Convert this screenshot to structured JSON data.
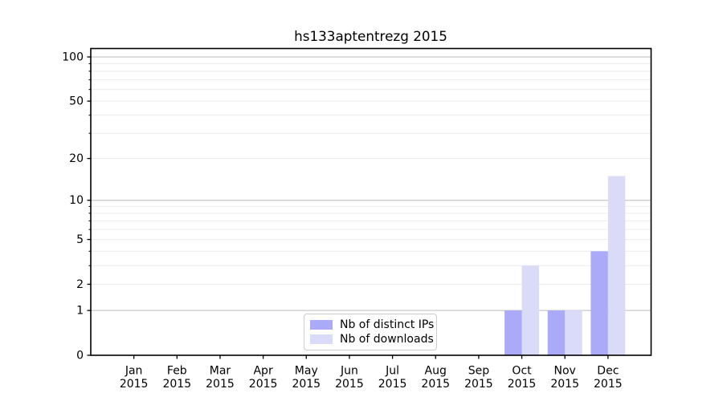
{
  "figure": {
    "background": "#ffffff"
  },
  "chart_data": {
    "type": "bar",
    "title": "hs133aptentrezg 2015",
    "categories": [
      "Jan 2015",
      "Feb 2015",
      "Mar 2015",
      "Apr 2015",
      "May 2015",
      "Jun 2015",
      "Jul 2015",
      "Aug 2015",
      "Sep 2015",
      "Oct 2015",
      "Nov 2015",
      "Dec 2015"
    ],
    "x_tick_labels": [
      [
        "Jan",
        "2015"
      ],
      [
        "Feb",
        "2015"
      ],
      [
        "Mar",
        "2015"
      ],
      [
        "Apr",
        "2015"
      ],
      [
        "May",
        "2015"
      ],
      [
        "Jun",
        "2015"
      ],
      [
        "Jul",
        "2015"
      ],
      [
        "Aug",
        "2015"
      ],
      [
        "Sep",
        "2015"
      ],
      [
        "Oct",
        "2015"
      ],
      [
        "Nov",
        "2015"
      ],
      [
        "Dec",
        "2015"
      ]
    ],
    "series": [
      {
        "name": "Nb of distinct IPs",
        "color": "#aaaaf9",
        "values": [
          0,
          0,
          0,
          0,
          0,
          0,
          0,
          0,
          0,
          1,
          1,
          4
        ]
      },
      {
        "name": "Nb of downloads",
        "color": "#dadaf9",
        "values": [
          0,
          0,
          0,
          0,
          0,
          0,
          0,
          0,
          0,
          3,
          1,
          15
        ]
      }
    ],
    "yscale": "log1p",
    "ylim": [
      0,
      115
    ],
    "xlabel": "",
    "ylabel": "",
    "y_ticks": [
      {
        "value": 100,
        "label": "100"
      },
      {
        "value": 50,
        "label": "50"
      },
      {
        "value": 20,
        "label": "20"
      },
      {
        "value": 10,
        "label": "10"
      },
      {
        "value": 5,
        "label": "5"
      },
      {
        "value": 2,
        "label": "2"
      },
      {
        "value": 1,
        "label": "1"
      },
      {
        "value": 0,
        "label": "0"
      }
    ],
    "y_major_grid": [
      1,
      10,
      100
    ],
    "y_minor_grid": [
      2,
      3,
      4,
      5,
      6,
      7,
      8,
      9,
      20,
      30,
      40,
      50,
      60,
      70,
      80,
      90
    ],
    "grid": true,
    "legend_position": "lower center",
    "colors": {
      "grid_major": "#c8c8c8",
      "grid_minor": "#ececec",
      "spine": "#000000",
      "text": "#000000"
    }
  }
}
